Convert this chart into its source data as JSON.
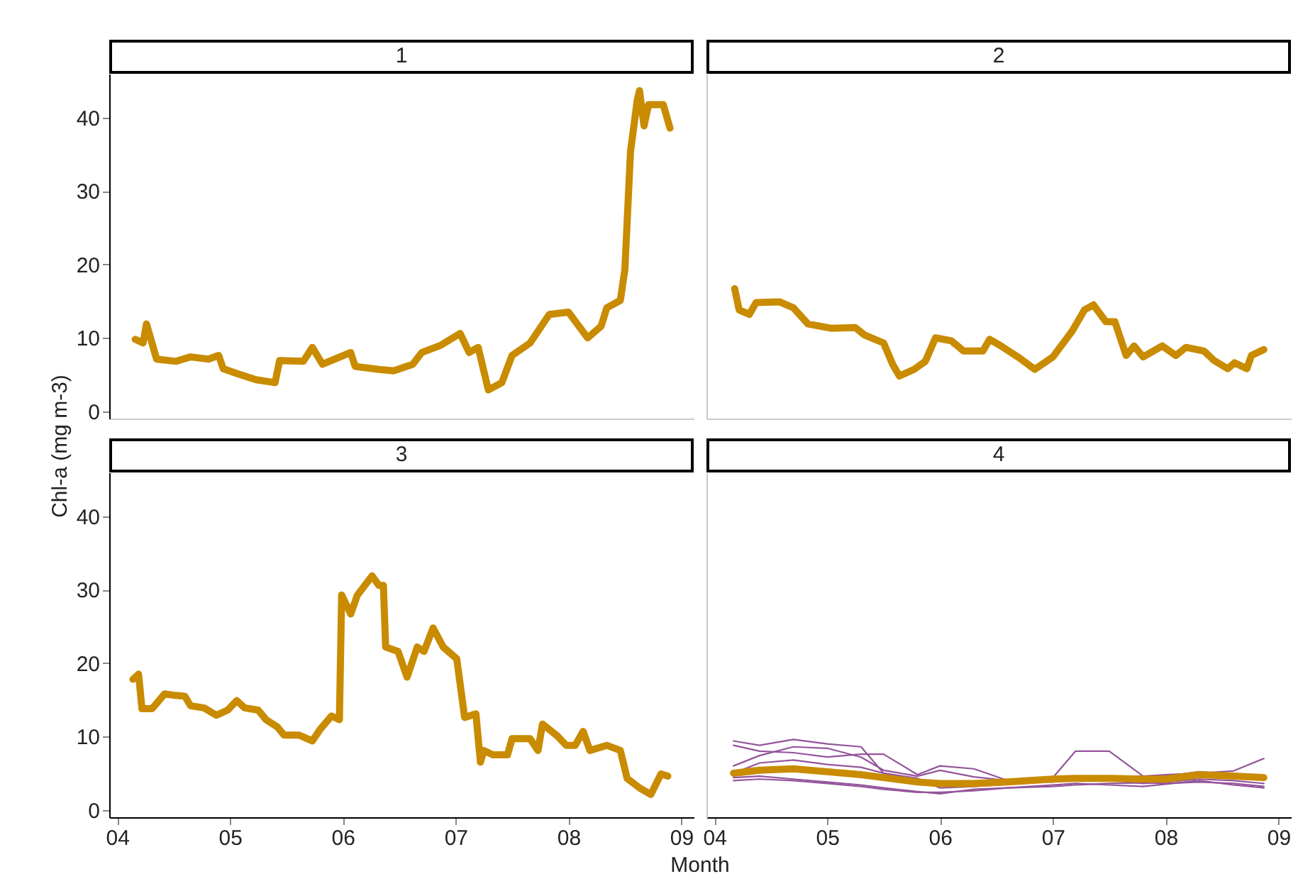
{
  "chart_data": [
    {
      "type": "line",
      "title": "1",
      "ylabel": "Chl-a (mg m-3)",
      "tick_labels": "y",
      "color": "#c98b00",
      "x": [
        4.16,
        4.23,
        4.26,
        4.35,
        4.52,
        4.65,
        4.81,
        4.9,
        4.94,
        5.07,
        5.23,
        5.4,
        5.44,
        5.65,
        5.73,
        5.82,
        6.07,
        6.11,
        6.32,
        6.45,
        6.62,
        6.7,
        6.87,
        7.04,
        7.12,
        7.2,
        7.29,
        7.41,
        7.5,
        7.66,
        7.83,
        8.0,
        8.17,
        8.29,
        8.34,
        8.46,
        8.5,
        8.55,
        8.61,
        8.63,
        8.67,
        8.71,
        8.84,
        8.9
      ],
      "values": [
        9.8,
        9.3,
        11.9,
        7.1,
        6.8,
        7.4,
        7.1,
        7.6,
        5.8,
        5.1,
        4.3,
        3.9,
        6.9,
        6.8,
        8.7,
        6.4,
        8.0,
        6.1,
        5.7,
        5.5,
        6.4,
        8.0,
        9.0,
        10.6,
        8.0,
        8.7,
        2.9,
        3.9,
        7.6,
        9.3,
        13.2,
        13.5,
        10.0,
        11.6,
        14.1,
        15.1,
        19.3,
        35.4,
        42.4,
        43.7,
        38.9,
        41.8,
        41.8,
        38.6
      ],
      "xlim": [
        3.93,
        9.11
      ],
      "ylim": [
        -1,
        46
      ],
      "yticks": [
        0,
        10,
        20,
        30,
        40
      ],
      "grid": false
    },
    {
      "type": "line",
      "title": "2",
      "tick_labels": false,
      "color": "#c98b00",
      "x": [
        4.18,
        4.22,
        4.31,
        4.37,
        4.58,
        4.7,
        4.83,
        5.04,
        5.25,
        5.33,
        5.5,
        5.58,
        5.64,
        5.77,
        5.87,
        5.96,
        6.1,
        6.21,
        6.38,
        6.44,
        6.54,
        6.71,
        6.84,
        7.0,
        7.17,
        7.28,
        7.36,
        7.47,
        7.55,
        7.65,
        7.72,
        7.8,
        7.97,
        8.09,
        8.18,
        8.34,
        8.43,
        8.55,
        8.61,
        8.72,
        8.76,
        8.87
      ],
      "values": [
        16.7,
        13.8,
        13.2,
        14.8,
        14.9,
        14.1,
        11.9,
        11.3,
        11.4,
        10.4,
        9.3,
        6.4,
        4.8,
        5.7,
        6.8,
        10.0,
        9.6,
        8.2,
        8.2,
        9.8,
        8.9,
        7.2,
        5.7,
        7.4,
        10.9,
        13.8,
        14.5,
        12.2,
        12.2,
        7.6,
        8.9,
        7.4,
        8.9,
        7.6,
        8.7,
        8.2,
        6.9,
        5.8,
        6.6,
        5.8,
        7.6,
        8.4
      ],
      "xlim": [
        3.93,
        9.11
      ],
      "ylim": [
        -1,
        46
      ],
      "grid": false
    },
    {
      "type": "line",
      "title": "3",
      "xlabel": "Month",
      "color": "#c98b00",
      "x": [
        4.14,
        4.19,
        4.22,
        4.31,
        4.42,
        4.52,
        4.6,
        4.65,
        4.77,
        4.88,
        4.98,
        5.06,
        5.13,
        5.25,
        5.32,
        5.42,
        5.48,
        5.61,
        5.73,
        5.8,
        5.9,
        5.97,
        5.99,
        6.07,
        6.13,
        6.26,
        6.32,
        6.36,
        6.38,
        6.49,
        6.57,
        6.66,
        6.72,
        6.8,
        6.89,
        7.01,
        7.08,
        7.18,
        7.22,
        7.25,
        7.33,
        7.46,
        7.5,
        7.66,
        7.73,
        7.77,
        7.9,
        7.98,
        8.06,
        8.13,
        8.19,
        8.34,
        8.46,
        8.52,
        8.63,
        8.73,
        8.82,
        8.88
      ],
      "values": [
        17.8,
        18.5,
        13.8,
        13.8,
        15.8,
        15.6,
        15.5,
        14.2,
        13.9,
        12.9,
        13.6,
        14.9,
        13.9,
        13.6,
        12.3,
        11.3,
        10.2,
        10.2,
        9.4,
        11.0,
        12.8,
        12.3,
        29.3,
        26.7,
        29.3,
        31.9,
        30.6,
        30.6,
        22.2,
        21.6,
        18.1,
        22.2,
        21.6,
        24.8,
        22.2,
        20.6,
        12.6,
        13.1,
        6.5,
        8.1,
        7.5,
        7.5,
        9.7,
        9.7,
        8.1,
        11.7,
        10.1,
        8.8,
        8.8,
        10.7,
        8.1,
        8.8,
        8.1,
        4.3,
        3.0,
        2.1,
        4.9,
        4.6
      ],
      "xlim": [
        3.93,
        9.11
      ],
      "ylim": [
        -1,
        46
      ],
      "xticks": [
        {
          "value": 4,
          "label": "04"
        },
        {
          "value": 5,
          "label": "05"
        },
        {
          "value": 6,
          "label": "06"
        },
        {
          "value": 7,
          "label": "07"
        },
        {
          "value": 8,
          "label": "08"
        },
        {
          "value": 9,
          "label": "09"
        }
      ],
      "yticks": [
        0,
        10,
        20,
        30,
        40
      ],
      "grid": false
    },
    {
      "type": "line",
      "title": "4",
      "tick_labels": "x",
      "x": [
        4.17,
        4.4,
        4.7,
        5.0,
        5.3,
        5.5,
        5.8,
        6.0,
        6.3,
        6.6,
        7.0,
        7.2,
        7.5,
        7.8,
        8.0,
        8.3,
        8.6,
        8.87
      ],
      "series": [
        {
          "color": "#94559b",
          "values": [
            9.4,
            8.8,
            9.6,
            9.0,
            8.6,
            5.0,
            4.3,
            3.0,
            3.2,
            3.5,
            3.9,
            4.0,
            4.1,
            4.0,
            4.2,
            4.6,
            4.5,
            4.4
          ]
        },
        {
          "color": "#94559b",
          "values": [
            8.8,
            8.0,
            7.8,
            7.2,
            7.6,
            7.6,
            4.8,
            6.0,
            5.6,
            4.0,
            4.4,
            8.0,
            8.0,
            4.6,
            4.8,
            5.0,
            5.3,
            7.0
          ]
        },
        {
          "color": "#94559b",
          "values": [
            5.0,
            6.4,
            6.8,
            6.2,
            5.8,
            5.0,
            4.0,
            3.8,
            3.5,
            3.6,
            4.2,
            4.2,
            4.1,
            3.6,
            3.8,
            4.2,
            4.0,
            3.6
          ]
        },
        {
          "color": "#94559b",
          "values": [
            4.4,
            4.6,
            4.2,
            3.8,
            3.4,
            3.0,
            2.5,
            2.2,
            2.8,
            3.0,
            3.2,
            3.4,
            3.6,
            3.7,
            3.6,
            3.8,
            3.6,
            3.2
          ]
        },
        {
          "color": "#94559b",
          "values": [
            4.0,
            4.2,
            4.0,
            3.6,
            3.2,
            2.8,
            2.4,
            2.4,
            2.6,
            3.0,
            3.4,
            3.6,
            3.4,
            3.2,
            3.5,
            4.0,
            3.4,
            3.0
          ]
        },
        {
          "color": "#94559b",
          "values": [
            6.0,
            7.4,
            8.6,
            8.4,
            7.2,
            5.4,
            4.6,
            5.4,
            4.5,
            4.0,
            3.8,
            4.2,
            4.4,
            4.6,
            4.6,
            5.2,
            4.8,
            null
          ]
        },
        {
          "color": "#c98b00",
          "values": [
            5.0,
            5.4,
            5.6,
            5.2,
            4.8,
            4.4,
            3.8,
            3.6,
            3.6,
            3.8,
            4.2,
            4.3,
            4.3,
            4.2,
            4.2,
            4.8,
            4.6,
            4.4
          ]
        }
      ],
      "xlim": [
        3.93,
        9.11
      ],
      "ylim": [
        -1,
        46
      ],
      "xticks": [
        {
          "value": 4,
          "label": "04"
        },
        {
          "value": 5,
          "label": "05"
        },
        {
          "value": 6,
          "label": "06"
        },
        {
          "value": 7,
          "label": "07"
        },
        {
          "value": 8,
          "label": "08"
        },
        {
          "value": 9,
          "label": "09"
        }
      ],
      "grid": false
    }
  ]
}
